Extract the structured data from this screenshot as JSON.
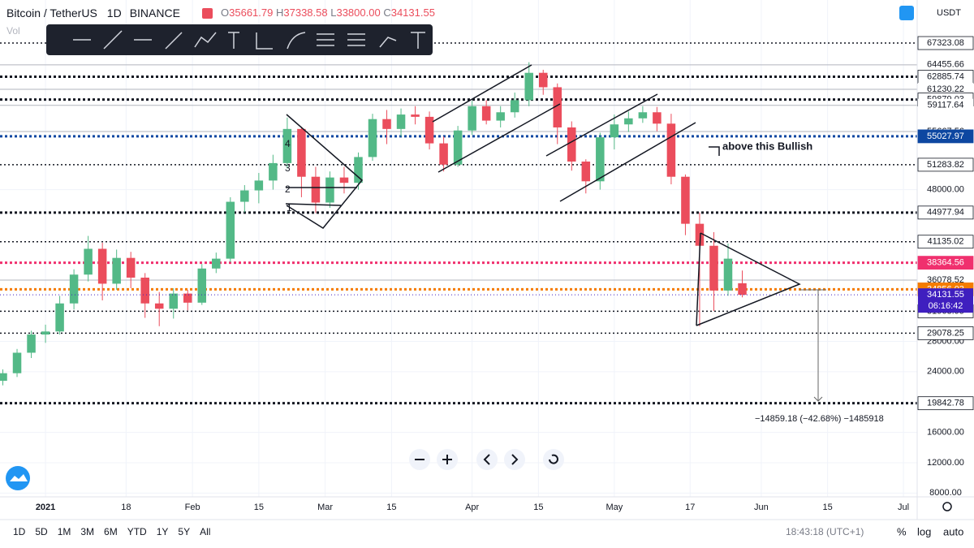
{
  "header": {
    "symbol": "Bitcoin / TetherUS",
    "interval": "1D",
    "exchange": "BINANCE",
    "ohlc": [
      [
        "O",
        "35661.79"
      ],
      [
        "H",
        "37338.58"
      ],
      [
        "L",
        "33800.00"
      ],
      [
        "C",
        "34131.55"
      ]
    ],
    "indicator": "Vol",
    "currency": "USDT"
  },
  "chart_data": {
    "type": "candlestick",
    "up_color": "#53b987",
    "down_color": "#eb4d5c",
    "xlim": [
      -9.6,
      183.9
    ],
    "ylim": [
      7500,
      73000
    ],
    "xticks": [
      {
        "value": 0,
        "label": "2021"
      },
      {
        "value": 17,
        "label": "18"
      },
      {
        "value": 31,
        "label": "Feb"
      },
      {
        "value": 45,
        "label": "15"
      },
      {
        "value": 59,
        "label": "Mar"
      },
      {
        "value": 73,
        "label": "15"
      },
      {
        "value": 90,
        "label": "Apr"
      },
      {
        "value": 104,
        "label": "15"
      },
      {
        "value": 120,
        "label": "May"
      },
      {
        "value": 136,
        "label": "17"
      },
      {
        "value": 151,
        "label": "Jun"
      },
      {
        "value": 165,
        "label": "15"
      },
      {
        "value": 181,
        "label": "Jul"
      }
    ],
    "yticks": [
      {
        "value": 48000,
        "label": "48000.00"
      },
      {
        "value": 28000,
        "label": "28000.00"
      },
      {
        "value": 24000,
        "label": "24000.00"
      },
      {
        "value": 16000,
        "label": "16000.00"
      },
      {
        "value": 12000,
        "label": "12000.00"
      },
      {
        "value": 8000,
        "label": "8000.00"
      }
    ],
    "x": [
      -9,
      -6,
      -3,
      0,
      3,
      6,
      9,
      12,
      15,
      18,
      21,
      24,
      27,
      30,
      33,
      36,
      39,
      42,
      45,
      48,
      51,
      54,
      57,
      60,
      63,
      66,
      69,
      72,
      75,
      78,
      81,
      84,
      87,
      90,
      93,
      96,
      99,
      102,
      105,
      108,
      111,
      114,
      117,
      120,
      123,
      126,
      129,
      132,
      135,
      138,
      141,
      144,
      147
    ],
    "open": [
      22800,
      23800,
      26500,
      28900,
      29300,
      33000,
      36800,
      40200,
      35600,
      39000,
      36400,
      33000,
      32300,
      34300,
      33100,
      37600,
      38900,
      46400,
      47900,
      49200,
      51500,
      56000,
      49700,
      46300,
      49600,
      48900,
      52300,
      57300,
      56000,
      57900,
      57600,
      54100,
      51300,
      55800,
      59000,
      57100,
      58200,
      59800,
      63400,
      61500,
      56200,
      51700,
      49100,
      54900,
      56600,
      57400,
      58200,
      56700,
      49700,
      43500,
      40600,
      34700,
      35661.79
    ],
    "high": [
      24300,
      27000,
      29400,
      30200,
      34000,
      37500,
      41900,
      41000,
      40100,
      39800,
      37000,
      34500,
      35000,
      34800,
      38200,
      39700,
      47000,
      48600,
      50200,
      52600,
      57500,
      56300,
      51000,
      50400,
      51000,
      52900,
      58000,
      58500,
      58700,
      59000,
      58300,
      55000,
      56400,
      59700,
      59800,
      59000,
      60800,
      64800,
      63800,
      62000,
      57000,
      52000,
      55500,
      57900,
      58300,
      59000,
      58900,
      58000,
      50000,
      45000,
      42400,
      40900,
      37338.58
    ],
    "low": [
      22200,
      23300,
      25800,
      27800,
      28900,
      32200,
      35900,
      33400,
      34800,
      35000,
      31100,
      30000,
      31000,
      32100,
      32800,
      37000,
      38400,
      45000,
      46200,
      48000,
      50800,
      47000,
      44900,
      45600,
      47500,
      48000,
      51800,
      54000,
      55000,
      56600,
      53300,
      50400,
      51000,
      55200,
      56600,
      56200,
      57500,
      59000,
      60500,
      54000,
      50500,
      47500,
      48000,
      53300,
      55600,
      56800,
      55700,
      48700,
      42000,
      30000,
      32000,
      34000,
      33800
    ],
    "close": [
      23800,
      26500,
      28900,
      29300,
      33000,
      36800,
      40200,
      35600,
      39000,
      36400,
      33000,
      32300,
      34300,
      33100,
      37600,
      38900,
      46400,
      47900,
      49200,
      51500,
      56000,
      49700,
      46300,
      49600,
      48900,
      52300,
      57300,
      56000,
      57900,
      57600,
      54100,
      51300,
      55800,
      59000,
      57100,
      58200,
      59800,
      63400,
      61500,
      56200,
      51700,
      49100,
      54900,
      56600,
      57400,
      58200,
      56700,
      49700,
      43500,
      40600,
      34700,
      38900,
      34131.55
    ],
    "levels": [
      {
        "price": 67323.08,
        "color": "#131722",
        "style": "dotted"
      },
      {
        "price": 64455.66,
        "color": "#b2b5be",
        "style": "solid"
      },
      {
        "price": 62885.74,
        "color": "#131722",
        "style": "dotted-bold"
      },
      {
        "price": 61230.22,
        "color": "#b2b5be",
        "style": "solid"
      },
      {
        "price": 59879.03,
        "color": "#131722",
        "style": "dotted-bold"
      },
      {
        "price": 59117.64,
        "color": "#b2b5be",
        "style": "solid"
      },
      {
        "price": 55667.56,
        "color": "#b2b5be",
        "style": "solid"
      },
      {
        "price": 55027.97,
        "color": "#0d47a1",
        "style": "dotted-bold"
      },
      {
        "price": 51283.82,
        "color": "#131722",
        "style": "dotted"
      },
      {
        "price": 44977.94,
        "color": "#131722",
        "style": "dotted-bold"
      },
      {
        "price": 41135.02,
        "color": "#131722",
        "style": "dotted"
      },
      {
        "price": 38364.56,
        "color": "#f0306e",
        "style": "dotted-bold"
      },
      {
        "price": 36078.52,
        "color": "#b2b5be",
        "style": "solid"
      },
      {
        "price": 34856.03,
        "color": "#f57c00",
        "style": "dotted-bold"
      },
      {
        "price": 31963.95,
        "color": "#131722",
        "style": "dotted"
      },
      {
        "price": 29078.25,
        "color": "#131722",
        "style": "dotted"
      },
      {
        "price": 19842.78,
        "color": "#131722",
        "style": "dotted-bold"
      }
    ],
    "last": {
      "price": 34131.55,
      "countdown": "06:16:42",
      "color": "#3f1fbf"
    },
    "wave_labels": [
      "1",
      "2",
      "3",
      "4"
    ],
    "annotation": "above this Bullish",
    "measure": "−14859.18 (−42.68%) −1485918"
  },
  "footer": {
    "ranges": [
      "1D",
      "5D",
      "1M",
      "3M",
      "6M",
      "YTD",
      "1Y",
      "5Y",
      "All"
    ],
    "clock": "18:43:18 (UTC+1)",
    "scale_options": [
      "%",
      "log",
      "auto"
    ]
  }
}
